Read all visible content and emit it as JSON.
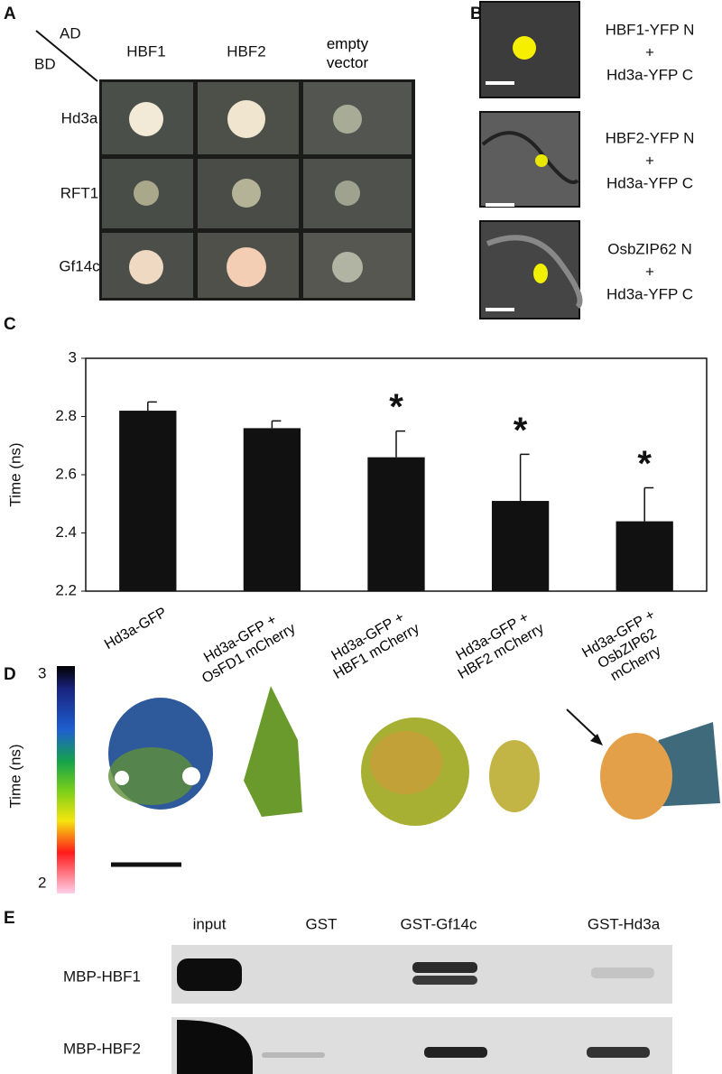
{
  "panels": {
    "A": {
      "letter": "A",
      "ad": "AD",
      "bd": "BD",
      "columns": [
        "HBF1",
        "HBF2",
        "empty vector"
      ],
      "rows": [
        "Hd3a",
        "RFT1",
        "Gf14c"
      ]
    },
    "B": {
      "letter": "B",
      "labels": [
        [
          "HBF1-YFP N",
          "+",
          "Hd3a-YFP C"
        ],
        [
          "HBF2-YFP N",
          "+",
          "Hd3a-YFP C"
        ],
        [
          "OsbZIP62 N",
          "+",
          "Hd3a-YFP C"
        ]
      ]
    },
    "C": {
      "letter": "C"
    },
    "D": {
      "letter": "D",
      "colorbar_label": "Time (ns)",
      "colorbar_top": "3",
      "colorbar_bottom": "2"
    },
    "E": {
      "letter": "E",
      "columns": [
        "input",
        "GST",
        "GST-Gf14c",
        "GST-Hd3a"
      ],
      "rows": [
        "MBP-HBF1",
        "MBP-HBF2"
      ]
    }
  },
  "chart_data": {
    "type": "bar",
    "y_label": "Time (ns)",
    "categories": [
      "Hd3a-GFP",
      "Hd3a-GFP +\nOsFD1 mCherry",
      "Hd3a-GFP +\nHBF1 mCherry",
      "Hd3a-GFP +\nHBF2 mCherry",
      "Hd3a-GFP +\nOsbZIP62\nmCherry"
    ],
    "series": [
      {
        "color": "#111111",
        "values": [
          2.82,
          2.76,
          2.66,
          2.51,
          2.44
        ],
        "errors": [
          0.03,
          0.025,
          0.09,
          0.16,
          0.115
        ]
      }
    ],
    "annotations": [
      null,
      null,
      "*",
      "*",
      "*"
    ],
    "ylim": [
      2.2,
      3
    ],
    "yticks": [
      2.2,
      2.4,
      2.6,
      2.8,
      3
    ]
  }
}
